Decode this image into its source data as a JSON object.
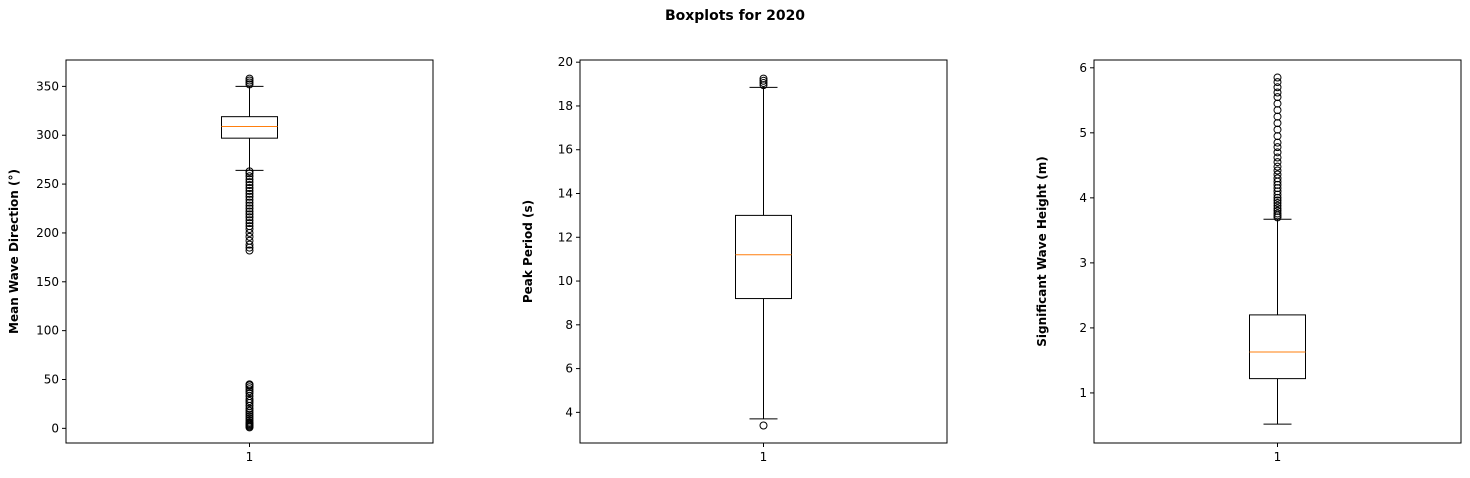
{
  "figure": {
    "title": "Boxplots for 2020"
  },
  "chart_data": [
    {
      "type": "boxplot",
      "title": "",
      "xlabel": "",
      "ylabel": "Mean Wave Direction (°)",
      "categories": [
        "1"
      ],
      "ylim": [
        -15,
        377
      ],
      "yticks": [
        0,
        50,
        100,
        150,
        200,
        250,
        300,
        350
      ],
      "box": {
        "whisker_low": 264,
        "q1": 297,
        "median": 309,
        "q3": 319,
        "whisker_high": 350
      },
      "outliers": [
        1,
        2,
        3,
        4,
        5,
        6,
        8,
        10,
        12,
        14,
        16,
        18,
        20,
        23,
        26,
        28,
        30,
        33,
        36,
        38,
        40,
        42,
        44,
        45,
        182,
        185,
        188,
        192,
        196,
        200,
        204,
        207,
        210,
        213,
        216,
        219,
        222,
        225,
        228,
        231,
        234,
        237,
        240,
        243,
        246,
        249,
        252,
        255,
        258,
        261,
        263,
        352,
        354,
        356,
        358
      ]
    },
    {
      "type": "boxplot",
      "title": "",
      "xlabel": "",
      "ylabel": "Peak Period (s)",
      "categories": [
        "1"
      ],
      "ylim": [
        2.6,
        20.1
      ],
      "yticks": [
        4,
        6,
        8,
        10,
        12,
        14,
        16,
        18,
        20
      ],
      "box": {
        "whisker_low": 3.7,
        "q1": 9.2,
        "median": 11.2,
        "q3": 13.0,
        "whisker_high": 18.85
      },
      "outliers": [
        3.4,
        18.95,
        19.05,
        19.15,
        19.25
      ]
    },
    {
      "type": "boxplot",
      "title": "",
      "xlabel": "",
      "ylabel": "Significant Wave Height (m)",
      "categories": [
        "1"
      ],
      "ylim": [
        0.23,
        6.12
      ],
      "yticks": [
        1,
        2,
        3,
        4,
        5,
        6
      ],
      "box": {
        "whisker_low": 0.52,
        "q1": 1.22,
        "median": 1.63,
        "q3": 2.2,
        "whisker_high": 3.67
      },
      "outliers": [
        3.7,
        3.73,
        3.76,
        3.8,
        3.84,
        3.88,
        3.92,
        3.96,
        4.0,
        4.05,
        4.1,
        4.15,
        4.2,
        4.25,
        4.3,
        4.36,
        4.42,
        4.48,
        4.55,
        4.62,
        4.7,
        4.78,
        4.85,
        4.95,
        5.05,
        5.15,
        5.25,
        5.35,
        5.45,
        5.55,
        5.62,
        5.7,
        5.78,
        5.85
      ]
    }
  ],
  "colors": {
    "median": "#ff7f0e",
    "box": "#000000",
    "frame": "#000000"
  }
}
